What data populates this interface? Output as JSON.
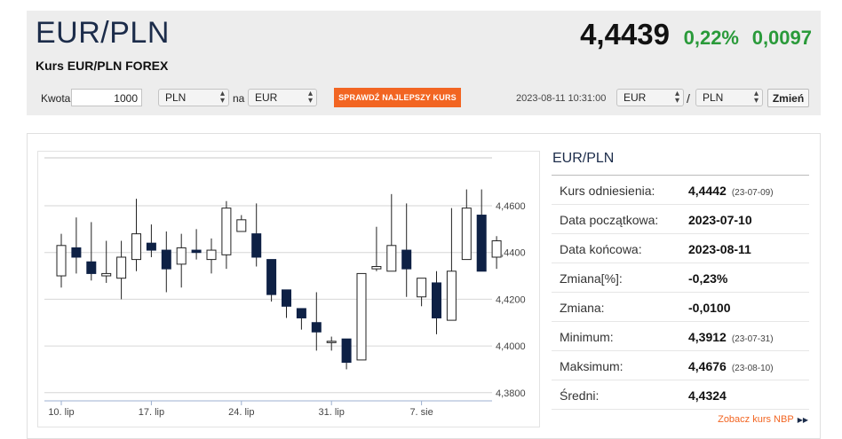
{
  "header": {
    "pair": "EUR/PLN",
    "subtitle": "Kurs EUR/PLN FOREX",
    "price": "4,4439",
    "change_pct": "0,22%",
    "change_abs": "0,0097"
  },
  "converter": {
    "amount_label": "Kwota",
    "amount_value": "1000",
    "from_currency": "PLN",
    "connector": "na",
    "to_currency": "EUR",
    "check_button": "SPRAWDŹ NAJLEPSZY KURS"
  },
  "pair_selector": {
    "datetime": "2023-08-11 10:31:00",
    "base": "EUR",
    "separator": "/",
    "quote": "PLN",
    "change_button": "Zmień"
  },
  "stats": {
    "title": "EUR/PLN",
    "rows": [
      {
        "label": "Kurs odniesienia:",
        "value": "4,4442",
        "date": "(23-07-09)"
      },
      {
        "label": "Data początkowa:",
        "value": "2023-07-10",
        "date": ""
      },
      {
        "label": "Data końcowa:",
        "value": "2023-08-11",
        "date": ""
      },
      {
        "label": "Zmiana[%]:",
        "value": "-0,23%",
        "date": ""
      },
      {
        "label": "Zmiana:",
        "value": "-0,0100",
        "date": ""
      },
      {
        "label": "Minimum:",
        "value": "4,3912",
        "date": "(23-07-31)"
      },
      {
        "label": "Maksimum:",
        "value": "4,4676",
        "date": "(23-08-10)"
      },
      {
        "label": "Średni:",
        "value": "4,4324",
        "date": ""
      }
    ],
    "nbp_link": "Zobacz kurs NBP"
  },
  "colors": {
    "up_candle": "#ffffff",
    "down_candle": "#0e2145",
    "accent": "#f26522",
    "positive": "#2a9a3a"
  },
  "chart_data": {
    "type": "candlestick",
    "y_ticks": [
      "4,4600",
      "4,4400",
      "4,4200",
      "4,4000",
      "4,3800"
    ],
    "y_tick_values": [
      4.46,
      4.44,
      4.42,
      4.4,
      4.38
    ],
    "x_ticks": [
      {
        "label": "10. lip",
        "index": 0
      },
      {
        "label": "17. lip",
        "index": 6
      },
      {
        "label": "24. lip",
        "index": 12
      },
      {
        "label": "31. lip",
        "index": 18
      },
      {
        "label": "7. sie",
        "index": 24
      }
    ],
    "ylim": [
      4.3765,
      4.4805
    ],
    "grid": true,
    "candles": [
      {
        "o": 4.43,
        "c": 4.443,
        "h": 4.448,
        "l": 4.425
      },
      {
        "o": 4.442,
        "c": 4.438,
        "h": 4.455,
        "l": 4.431
      },
      {
        "o": 4.436,
        "c": 4.431,
        "h": 4.453,
        "l": 4.428
      },
      {
        "o": 4.43,
        "c": 4.431,
        "h": 4.445,
        "l": 4.427
      },
      {
        "o": 4.429,
        "c": 4.438,
        "h": 4.445,
        "l": 4.42
      },
      {
        "o": 4.437,
        "c": 4.448,
        "h": 4.463,
        "l": 4.432
      },
      {
        "o": 4.444,
        "c": 4.441,
        "h": 4.452,
        "l": 4.438
      },
      {
        "o": 4.441,
        "c": 4.433,
        "h": 4.449,
        "l": 4.423
      },
      {
        "o": 4.435,
        "c": 4.442,
        "h": 4.448,
        "l": 4.425
      },
      {
        "o": 4.441,
        "c": 4.44,
        "h": 4.45,
        "l": 4.437
      },
      {
        "o": 4.437,
        "c": 4.441,
        "h": 4.446,
        "l": 4.431
      },
      {
        "o": 4.439,
        "c": 4.459,
        "h": 4.462,
        "l": 4.433
      },
      {
        "o": 4.449,
        "c": 4.454,
        "h": 4.456,
        "l": 4.449
      },
      {
        "o": 4.448,
        "c": 4.438,
        "h": 4.461,
        "l": 4.434
      },
      {
        "o": 4.437,
        "c": 4.422,
        "h": 4.437,
        "l": 4.419
      },
      {
        "o": 4.424,
        "c": 4.417,
        "h": 4.424,
        "l": 4.412
      },
      {
        "o": 4.416,
        "c": 4.412,
        "h": 4.416,
        "l": 4.407
      },
      {
        "o": 4.41,
        "c": 4.406,
        "h": 4.423,
        "l": 4.398
      },
      {
        "o": 4.402,
        "c": 4.402,
        "h": 4.404,
        "l": 4.398
      },
      {
        "o": 4.403,
        "c": 4.393,
        "h": 4.403,
        "l": 4.39
      },
      {
        "o": 4.394,
        "c": 4.431,
        "h": 4.431,
        "l": 4.394
      },
      {
        "o": 4.433,
        "c": 4.434,
        "h": 4.451,
        "l": 4.432
      },
      {
        "o": 4.432,
        "c": 4.443,
        "h": 4.465,
        "l": 4.432
      },
      {
        "o": 4.441,
        "c": 4.433,
        "h": 4.461,
        "l": 4.421
      },
      {
        "o": 4.421,
        "c": 4.429,
        "h": 4.429,
        "l": 4.417
      },
      {
        "o": 4.427,
        "c": 4.412,
        "h": 4.432,
        "l": 4.405
      },
      {
        "o": 4.411,
        "c": 4.432,
        "h": 4.459,
        "l": 4.411
      },
      {
        "o": 4.437,
        "c": 4.459,
        "h": 4.467,
        "l": 4.437
      },
      {
        "o": 4.456,
        "c": 4.432,
        "h": 4.467,
        "l": 4.432
      },
      {
        "o": 4.438,
        "c": 4.445,
        "h": 4.447,
        "l": 4.433
      }
    ]
  }
}
